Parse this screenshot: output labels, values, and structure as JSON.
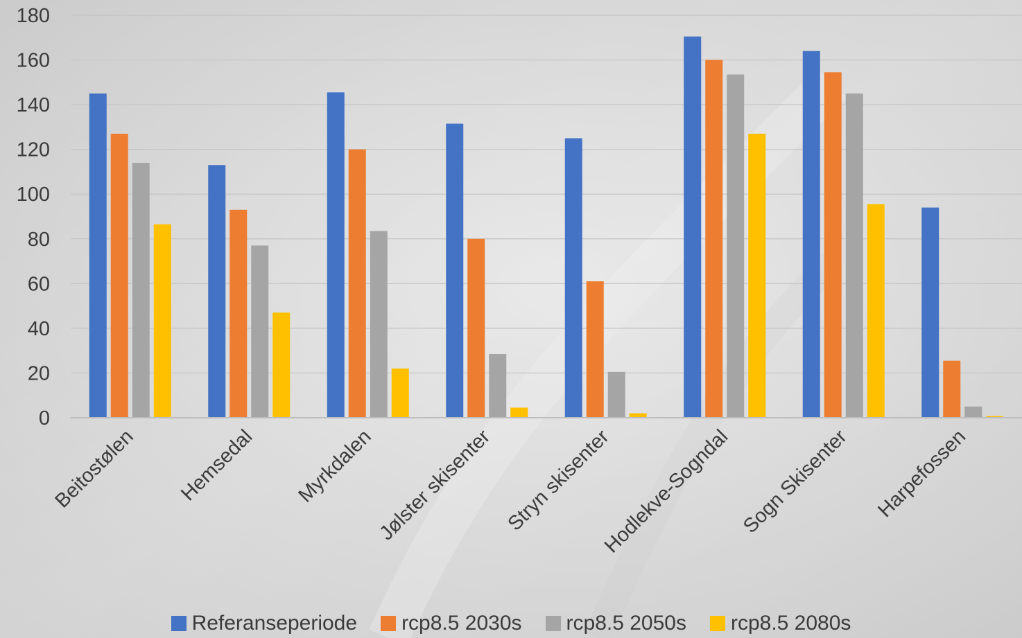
{
  "chart_data": {
    "type": "bar",
    "categories": [
      "Beitostølen",
      "Hemsedal",
      "Myrkdalen",
      "Jølster skisenter",
      "Stryn skisenter",
      "Hodlekve-Sogndal",
      "Sogn Skisenter",
      "Harpefossen"
    ],
    "series": [
      {
        "name": "Referanseperiode",
        "color": "#4472C4",
        "values": [
          145,
          113,
          145.5,
          131.5,
          125,
          170.5,
          164,
          94
        ]
      },
      {
        "name": "rcp8.5 2030s",
        "color": "#ED7D31",
        "values": [
          127,
          93,
          120,
          80,
          61,
          160,
          154.5,
          25.5
        ]
      },
      {
        "name": "rcp8.5 2050s",
        "color": "#A5A5A5",
        "values": [
          114,
          77,
          83.5,
          28.5,
          20.5,
          153.5,
          145,
          5
        ]
      },
      {
        "name": "rcp8.5 2080s",
        "color": "#FFC000",
        "values": [
          86.5,
          47,
          22,
          4.5,
          2,
          127,
          95.5,
          0.7
        ]
      }
    ],
    "yticks": [
      0,
      20,
      40,
      60,
      80,
      100,
      120,
      140,
      160,
      180
    ],
    "ylim": [
      0,
      180
    ],
    "grid": true,
    "legend_position": "bottom"
  }
}
